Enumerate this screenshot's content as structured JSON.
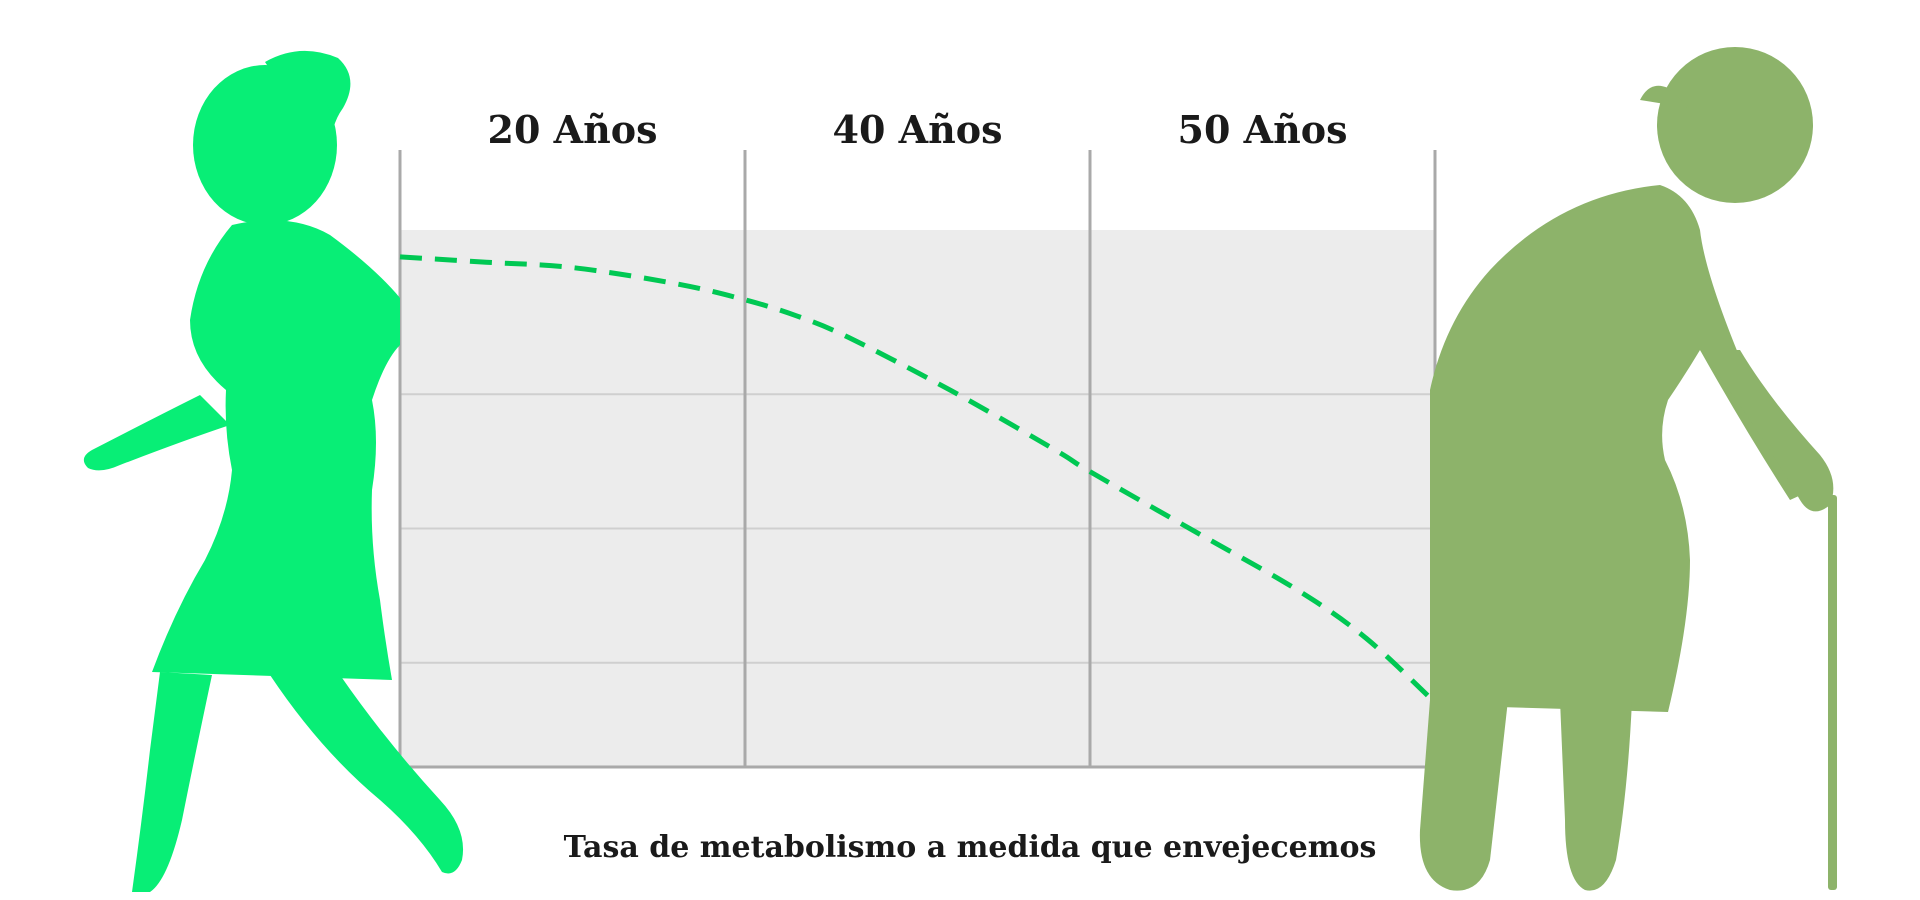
{
  "chart_data": {
    "type": "line",
    "title": "Tasa de metabolismo a medida que envejecemos",
    "categories": [
      "20 Años",
      "40 Años",
      "50 Años"
    ],
    "xlabel": "",
    "ylabel": "",
    "grid": true,
    "legend": "none",
    "series": [
      {
        "x": [
          0,
          0.25,
          0.5,
          0.8,
          1.0,
          1.15,
          1.3,
          1.6,
          1.9,
          2.0,
          2.3,
          2.6,
          2.8,
          3.0
        ],
        "values": [
          0.95,
          0.94,
          0.93,
          0.9,
          0.87,
          0.84,
          0.8,
          0.7,
          0.59,
          0.55,
          0.44,
          0.33,
          0.24,
          0.12
        ]
      }
    ],
    "xlim": [
      0,
      3
    ],
    "ylim": [
      0,
      1
    ],
    "colors": {
      "line": "#00c853",
      "plot_bg": "#ececec",
      "gridline": "#cfcfcf",
      "column_divider": "#a9a9a9",
      "young_figure": "#08ee76",
      "old_figure": "#8db36a"
    }
  },
  "figures": {
    "left": {
      "icon": "young-woman-walking-icon"
    },
    "right": {
      "icon": "elderly-woman-with-cane-icon"
    }
  }
}
